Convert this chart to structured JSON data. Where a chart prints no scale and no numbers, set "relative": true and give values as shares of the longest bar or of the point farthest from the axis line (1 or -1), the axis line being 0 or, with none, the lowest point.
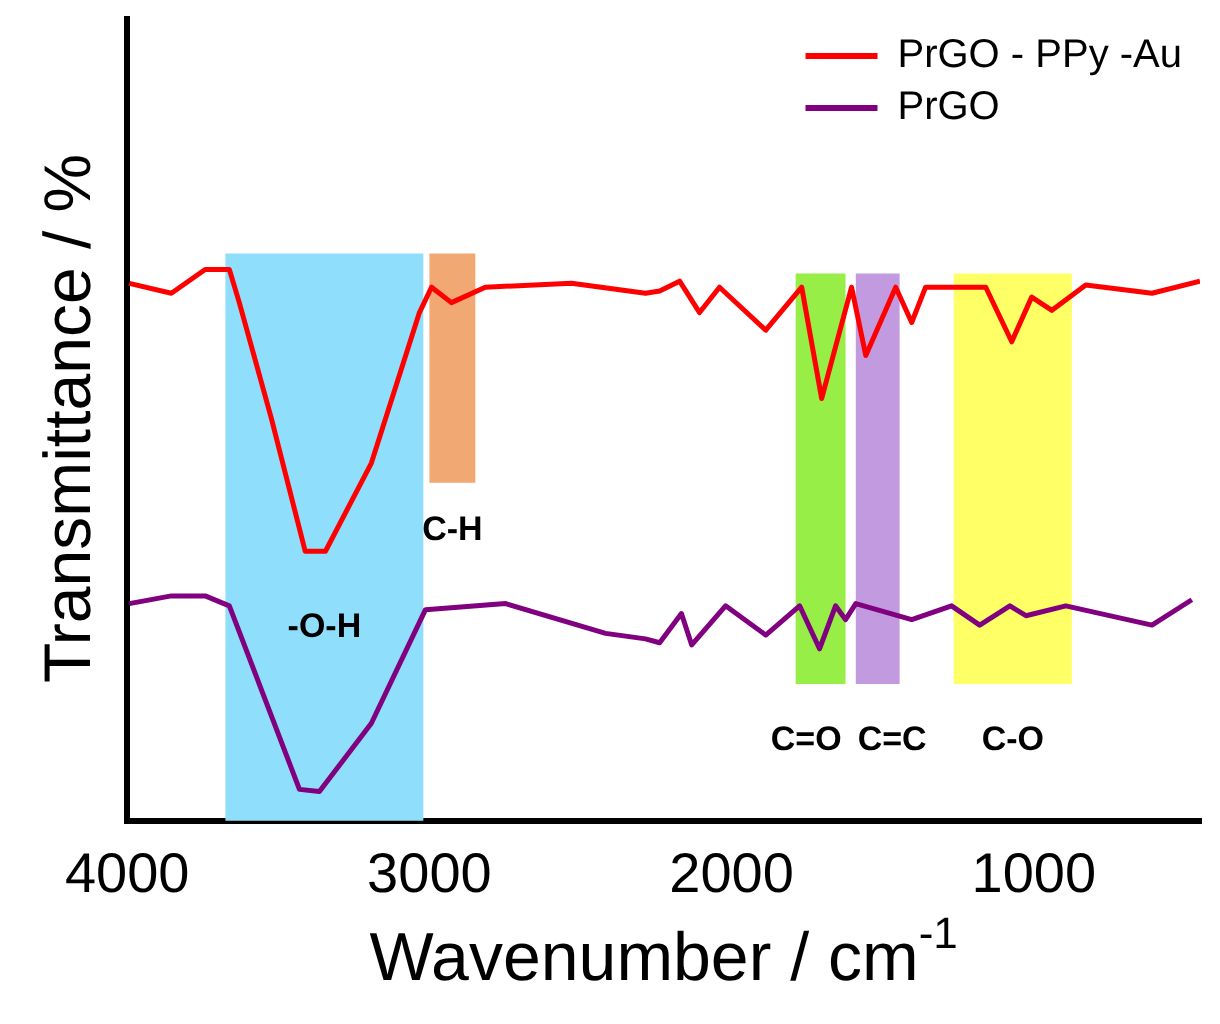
{
  "chart_data": {
    "type": "line",
    "relative": true,
    "xlabel": "Wavenumber / cm$^{-1}$",
    "ylabel": "Transmittance / %",
    "xlim": [
      4000,
      450
    ],
    "xticks": [
      4000,
      3000,
      2000,
      1000
    ],
    "legend": "top right",
    "marker": "none",
    "line_style": "solid",
    "grid": false,
    "series": [
      {
        "name": "PrGO - PPy -Au",
        "color": "#ff0000",
        "x": [
          3993,
          3854,
          3742,
          3662,
          3629,
          3523,
          3411,
          3344,
          3192,
          3033,
          2993,
          2927,
          2815,
          2530,
          2285,
          2238,
          2172,
          2106,
          2040,
          1887,
          1768,
          1702,
          1603,
          1556,
          1457,
          1404,
          1358,
          1159,
          1073,
          1007,
          940,
          828,
          609,
          450
        ],
        "values": [
          0.975,
          0.957,
          1,
          1,
          0.94,
          0.73,
          0.489,
          0.489,
          0.649,
          0.922,
          0.968,
          0.94,
          0.968,
          0.975,
          0.957,
          0.961,
          0.979,
          0.922,
          0.968,
          0.89,
          0.968,
          0.766,
          0.968,
          0.844,
          0.968,
          0.904,
          0.968,
          0.968,
          0.869,
          0.95,
          0.926,
          0.972,
          0.957,
          0.979
        ]
      },
      {
        "name": "PrGO",
        "color": "#800080",
        "x": [
          3993,
          3854,
          3742,
          3662,
          3563,
          3430,
          3364,
          3192,
          3013,
          2748,
          2417,
          2285,
          2238,
          2166,
          2132,
          2020,
          1887,
          1775,
          1709,
          1656,
          1623,
          1589,
          1404,
          1272,
          1179,
          1079,
          1026,
          894,
          609,
          477
        ],
        "values": [
          0.394,
          0.408,
          0.408,
          0.39,
          0.248,
          0.057,
          0.053,
          0.177,
          0.383,
          0.394,
          0.34,
          0.33,
          0.323,
          0.376,
          0.319,
          0.39,
          0.337,
          0.39,
          0.312,
          0.39,
          0.365,
          0.394,
          0.365,
          0.39,
          0.355,
          0.39,
          0.372,
          0.39,
          0.355,
          0.401
        ]
      }
    ],
    "bands": [
      {
        "axis": "x",
        "from": 3675,
        "to": 3020,
        "label": "-O-H",
        "color": "#8fdffc"
      },
      {
        "axis": "x",
        "from": 3000,
        "to": 2848,
        "label": "C-H",
        "color": "#f2a872"
      },
      {
        "axis": "x",
        "from": 1788,
        "to": 1623,
        "label": "C=O",
        "color": "#96ee46"
      },
      {
        "axis": "x",
        "from": 1589,
        "to": 1444,
        "label": "C=C",
        "color": "#c29ae0"
      },
      {
        "axis": "x",
        "from": 1265,
        "to": 874,
        "label": "C-O",
        "color": "#ffff66"
      }
    ]
  }
}
